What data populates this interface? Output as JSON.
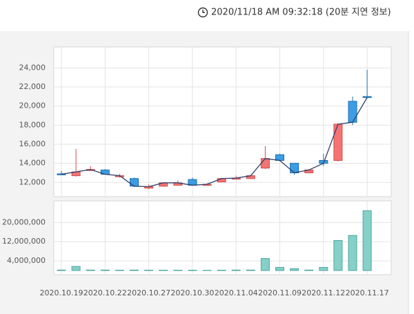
{
  "header": {
    "timestamp": "2020/11/18 AM 09:32:18 (20분 지연 정보)"
  },
  "chart_data": {
    "type": "candlestick",
    "categories": [
      "2020.10.19",
      null,
      null,
      "2020.10.22",
      null,
      null,
      "2020.10.27",
      null,
      null,
      "2020.10.30",
      null,
      null,
      "2020.11.04",
      null,
      null,
      "2020.11.09",
      null,
      null,
      "2020.11.12",
      null,
      null,
      "2020.11.17"
    ],
    "open": [
      12900,
      12700,
      13300,
      13300,
      12600,
      12400,
      11400,
      11600,
      11700,
      12300,
      11750,
      12050,
      12400,
      12400,
      13500,
      14900,
      14000,
      13000,
      14300,
      14300,
      20500,
      21000
    ],
    "high": [
      13200,
      15500,
      13700,
      13400,
      12900,
      12500,
      11800,
      12000,
      12200,
      12500,
      11900,
      12500,
      12700,
      12750,
      15800,
      15000,
      14000,
      13400,
      15000,
      18200,
      21000,
      23800
    ],
    "low": [
      12800,
      12600,
      13200,
      12800,
      12500,
      11500,
      11300,
      11550,
      11650,
      11650,
      11700,
      12000,
      12300,
      12350,
      13400,
      14200,
      12800,
      12950,
      13700,
      14200,
      18000,
      20800
    ],
    "close": [
      12850,
      13100,
      13350,
      12850,
      12700,
      11600,
      11550,
      11950,
      11950,
      11700,
      11800,
      12400,
      12450,
      12700,
      14500,
      14300,
      13000,
      13300,
      14000,
      18100,
      18300,
      20900
    ],
    "volume": [
      200000,
      1700000,
      200000,
      200000,
      150000,
      200000,
      150000,
      150000,
      150000,
      150000,
      100000,
      150000,
      200000,
      200000,
      5000000,
      1300000,
      800000,
      200000,
      1300000,
      12500000,
      14600000,
      24900000
    ],
    "up_color": "#f47373",
    "down_color": "#3b9de3",
    "line_color": "#2f3f6b",
    "volume_color": "#85d0c8",
    "ylim": [
      10500,
      26200
    ],
    "yticks": [
      {
        "value": 12000,
        "label": "12,000"
      },
      {
        "value": 14000,
        "label": "14,000"
      },
      {
        "value": 16000,
        "label": "16,000"
      },
      {
        "value": 18000,
        "label": "18,000"
      },
      {
        "value": 20000,
        "label": "20,000"
      },
      {
        "value": 22000,
        "label": "22,000"
      },
      {
        "value": 24000,
        "label": "24,000"
      }
    ],
    "volume_ylim": [
      0,
      29000000
    ],
    "volume_yticks": [
      {
        "value": 4000000,
        "label": "4,000,000"
      },
      {
        "value": 12000000,
        "label": "12,000,000"
      },
      {
        "value": 20000000,
        "label": "20,000,000"
      }
    ],
    "grid": true
  }
}
